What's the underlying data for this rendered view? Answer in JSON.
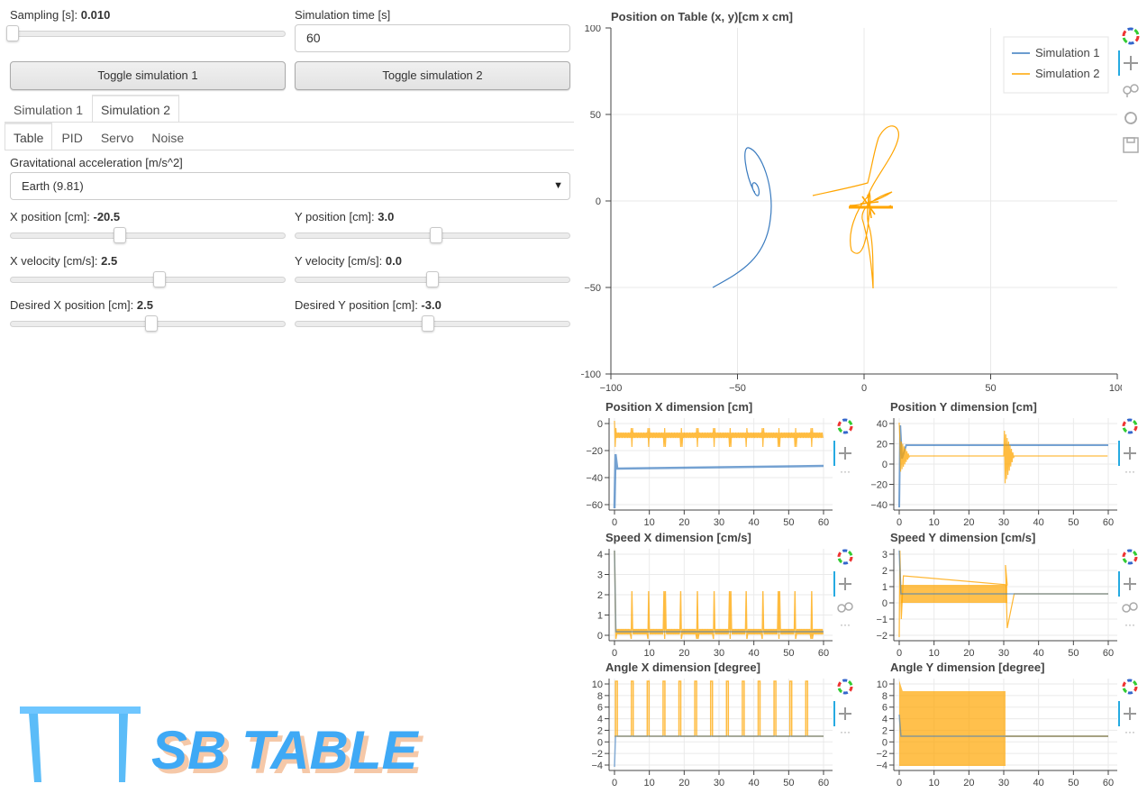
{
  "controls": {
    "sampling": {
      "label": "Sampling [s]: ",
      "value": "0.010",
      "fraction": 0.0
    },
    "sim_time": {
      "label": "Simulation time [s]",
      "value": "60"
    },
    "toggle1": "Toggle simulation 1",
    "toggle2": "Toggle simulation 2"
  },
  "sim_tabs": [
    "Simulation 1",
    "Simulation 2"
  ],
  "sub_tabs": [
    "Table",
    "PID",
    "Servo",
    "Noise"
  ],
  "gravity": {
    "label": "Gravitational acceleration [m/s^2]",
    "selected": "Earth (9.81)"
  },
  "sliders": [
    {
      "label": "X position [cm]: ",
      "value": "-20.5",
      "fraction": 0.4
    },
    {
      "label": "Y position [cm]: ",
      "value": "3.0",
      "fraction": 0.515
    },
    {
      "label": "X velocity [cm/s]: ",
      "value": "2.5",
      "fraction": 0.55
    },
    {
      "label": "Y velocity [cm/s]: ",
      "value": "0.0",
      "fraction": 0.5
    },
    {
      "label": "Desired X position [cm]: ",
      "value": "2.5",
      "fraction": 0.52
    },
    {
      "label": "Desired Y position [cm]: ",
      "value": "-3.0",
      "fraction": 0.48
    }
  ],
  "logo": {
    "text": "SB TABLE",
    "color": "#3fa9f5",
    "shadow": "#f5c8a8"
  },
  "colors": {
    "sim1": "#3a7bbf",
    "sim2": "#ffa500",
    "grid": "#e8e8e8"
  },
  "main_plot": {
    "title": "Position on Table (x, y)[cm x cm]",
    "legend": [
      "Simulation 1",
      "Simulation 2"
    ],
    "xticks": [
      "−100",
      "−50",
      "0",
      "50",
      "100"
    ],
    "yticks": [
      "100",
      "50",
      "0",
      "−50",
      "−100"
    ]
  },
  "chart_data": [
    {
      "type": "line",
      "title": "Position on Table (x, y)[cm x cm]",
      "xlim": [
        -100,
        100
      ],
      "ylim": [
        -100,
        100
      ],
      "series": [
        {
          "name": "Simulation 1"
        },
        {
          "name": "Simulation 2"
        }
      ],
      "legend": "top-right",
      "grid": true
    },
    {
      "type": "line",
      "title": "Position X dimension [cm]",
      "xlim": [
        0,
        60
      ],
      "yticks": [
        "0",
        "−20",
        "−40",
        "−60"
      ],
      "xticks": [
        "0",
        "10",
        "20",
        "30",
        "40",
        "50",
        "60"
      ]
    },
    {
      "type": "line",
      "title": "Position Y dimension [cm]",
      "xlim": [
        0,
        60
      ],
      "yticks": [
        "40",
        "20",
        "0",
        "−20",
        "−40"
      ],
      "xticks": [
        "0",
        "10",
        "20",
        "30",
        "40",
        "50",
        "60"
      ]
    },
    {
      "type": "line",
      "title": "Speed X dimension [cm/s]",
      "xlim": [
        0,
        60
      ],
      "yticks": [
        "4",
        "3",
        "2",
        "1",
        "0"
      ],
      "xticks": [
        "0",
        "10",
        "20",
        "30",
        "40",
        "50",
        "60"
      ]
    },
    {
      "type": "line",
      "title": "Speed Y dimension [cm/s]",
      "xlim": [
        0,
        60
      ],
      "yticks": [
        "3",
        "2",
        "1",
        "0",
        "−1",
        "−2"
      ],
      "xticks": [
        "0",
        "10",
        "20",
        "30",
        "40",
        "50",
        "60"
      ]
    },
    {
      "type": "line",
      "title": "Angle X dimension [degree]",
      "xlim": [
        0,
        60
      ],
      "yticks": [
        "10",
        "8",
        "6",
        "4",
        "2",
        "0",
        "−2",
        "−4"
      ],
      "xticks": [
        "0",
        "10",
        "20",
        "30",
        "40",
        "50",
        "60"
      ]
    },
    {
      "type": "line",
      "title": "Angle Y dimension [degree]",
      "xlim": [
        0,
        60
      ],
      "yticks": [
        "10",
        "8",
        "6",
        "4",
        "2",
        "0",
        "−2",
        "−4"
      ],
      "xticks": [
        "0",
        "10",
        "20",
        "30",
        "40",
        "50",
        "60"
      ]
    }
  ],
  "small_plots": [
    {
      "title": "Position X dimension [cm]"
    },
    {
      "title": "Position Y dimension [cm]"
    },
    {
      "title": "Speed X dimension [cm/s]"
    },
    {
      "title": "Speed Y dimension [cm/s]"
    },
    {
      "title": "Angle X dimension [degree]"
    },
    {
      "title": "Angle Y dimension [degree]"
    }
  ]
}
